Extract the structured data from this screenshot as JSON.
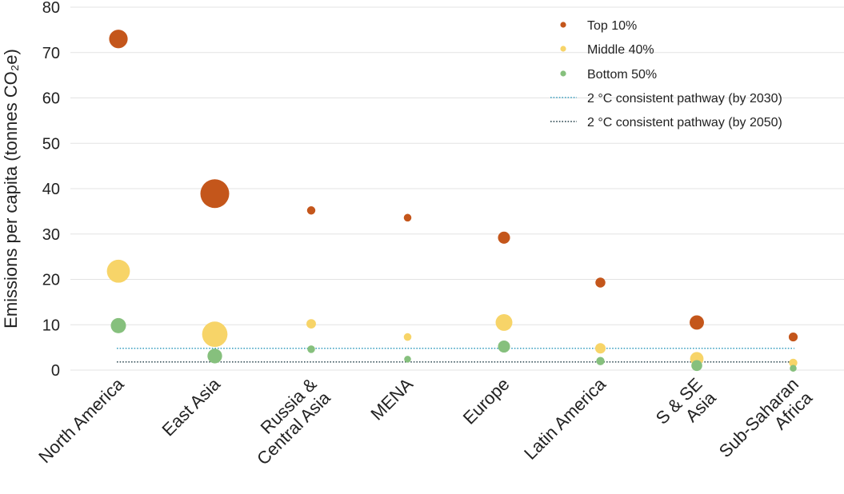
{
  "chart_data": {
    "type": "scatter",
    "ylabel": "Emissions per capita (tonnes CO₂e)",
    "ylim": [
      0,
      80
    ],
    "yticks": [
      0,
      10,
      20,
      30,
      40,
      50,
      60,
      70,
      80
    ],
    "grid": true,
    "legend_position": "top-right",
    "categories": [
      "North America",
      "East Asia",
      "Russia & Central Asia",
      "MENA",
      "Europe",
      "Latin America",
      "S & SE Asia",
      "Sub-Saharan Africa"
    ],
    "category_labels": [
      [
        "North America"
      ],
      [
        "East Asia"
      ],
      [
        "Russia &",
        "Central Asia"
      ],
      [
        "MENA"
      ],
      [
        "Europe"
      ],
      [
        "Latin America"
      ],
      [
        "S & SE",
        "Asia"
      ],
      [
        "Sub-Saharan",
        "Africa"
      ]
    ],
    "series": [
      {
        "name": "Top 10%",
        "color": "#c4561b",
        "values": [
          73,
          38.9,
          35.2,
          33.6,
          29.2,
          19.3,
          10.5,
          7.3
        ],
        "size_weights": [
          0.36,
          1.0,
          0.04,
          0.03,
          0.12,
          0.07,
          0.19,
          0.05
        ]
      },
      {
        "name": "Middle 40%",
        "color": "#f7d468",
        "values": [
          21.8,
          7.9,
          10.2,
          7.3,
          10.5,
          4.8,
          2.5,
          1.6
        ],
        "size_weights": [
          0.6,
          0.75,
          0.06,
          0.03,
          0.28,
          0.08,
          0.16,
          0.04
        ]
      },
      {
        "name": "Bottom 50%",
        "color": "#86c07d",
        "values": [
          9.8,
          3.1,
          4.6,
          2.4,
          5.2,
          2.0,
          1.0,
          0.4
        ],
        "size_weights": [
          0.22,
          0.2,
          0.03,
          0.02,
          0.12,
          0.04,
          0.09,
          0.02
        ]
      }
    ],
    "reference_lines": [
      {
        "name": "2 °C consistent pathway (by 2030)",
        "value": 4.8,
        "color": "#3a9fc0"
      },
      {
        "name": "2 °C consistent pathway (by 2050)",
        "value": 1.8,
        "color": "#1f3b45"
      }
    ]
  }
}
